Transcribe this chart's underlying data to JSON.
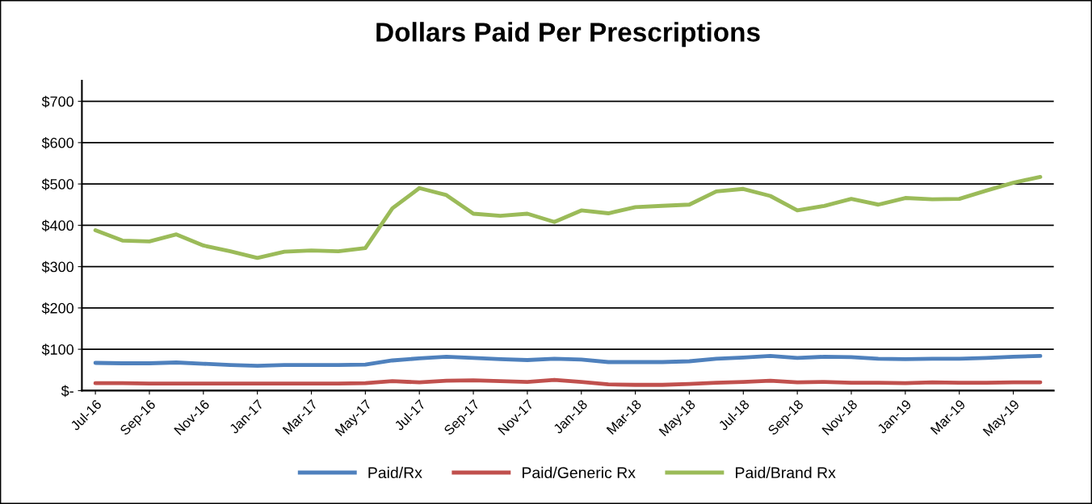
{
  "chart_data": {
    "type": "line",
    "title": "Dollars Paid Per Prescriptions",
    "categories": [
      "Jul-16",
      null,
      "Sep-16",
      null,
      "Nov-16",
      null,
      "Jan-17",
      null,
      "Mar-17",
      null,
      "May-17",
      null,
      "Jul-17",
      null,
      "Sep-17",
      null,
      "Nov-17",
      null,
      "Jan-18",
      null,
      "Mar-18",
      null,
      "May-18",
      null,
      "Jul-18",
      null,
      "Sep-18",
      null,
      "Nov-18",
      null,
      "Jan-19",
      null,
      "Mar-19",
      null,
      "May-19",
      null
    ],
    "series": [
      {
        "name": "Paid/Rx",
        "color": "#4f81bd",
        "values": [
          67,
          66,
          66,
          68,
          65,
          62,
          60,
          62,
          62,
          62,
          63,
          73,
          78,
          82,
          79,
          76,
          74,
          77,
          75,
          69,
          69,
          69,
          71,
          77,
          80,
          84,
          79,
          82,
          81,
          77,
          76,
          77,
          77,
          79,
          82,
          84
        ]
      },
      {
        "name": "Paid/Generic Rx",
        "color": "#c0504d",
        "values": [
          18,
          18,
          17,
          17,
          17,
          17,
          17,
          17,
          17,
          17,
          18,
          23,
          20,
          24,
          25,
          23,
          21,
          26,
          21,
          15,
          14,
          14,
          16,
          19,
          21,
          24,
          20,
          21,
          19,
          19,
          18,
          20,
          19,
          19,
          20,
          20
        ]
      },
      {
        "name": "Paid/Brand Rx",
        "color": "#9bbb59",
        "values": [
          388,
          363,
          361,
          378,
          351,
          337,
          321,
          336,
          339,
          337,
          345,
          441,
          490,
          473,
          428,
          423,
          428,
          408,
          436,
          429,
          444,
          447,
          450,
          482,
          488,
          471,
          436,
          447,
          464,
          450,
          466,
          463,
          464,
          484,
          503,
          517
        ]
      }
    ],
    "ylim": [
      0,
      750
    ],
    "yticks": [
      {
        "value": 0,
        "label": "$-"
      },
      {
        "value": 100,
        "label": "$100"
      },
      {
        "value": 200,
        "label": "$200"
      },
      {
        "value": 300,
        "label": "$300"
      },
      {
        "value": 400,
        "label": "$400"
      },
      {
        "value": 500,
        "label": "$500"
      },
      {
        "value": 600,
        "label": "$600"
      },
      {
        "value": 700,
        "label": "$700"
      }
    ],
    "grid": "y",
    "legend": "bottom",
    "marker": "none",
    "line_style": "solid"
  }
}
